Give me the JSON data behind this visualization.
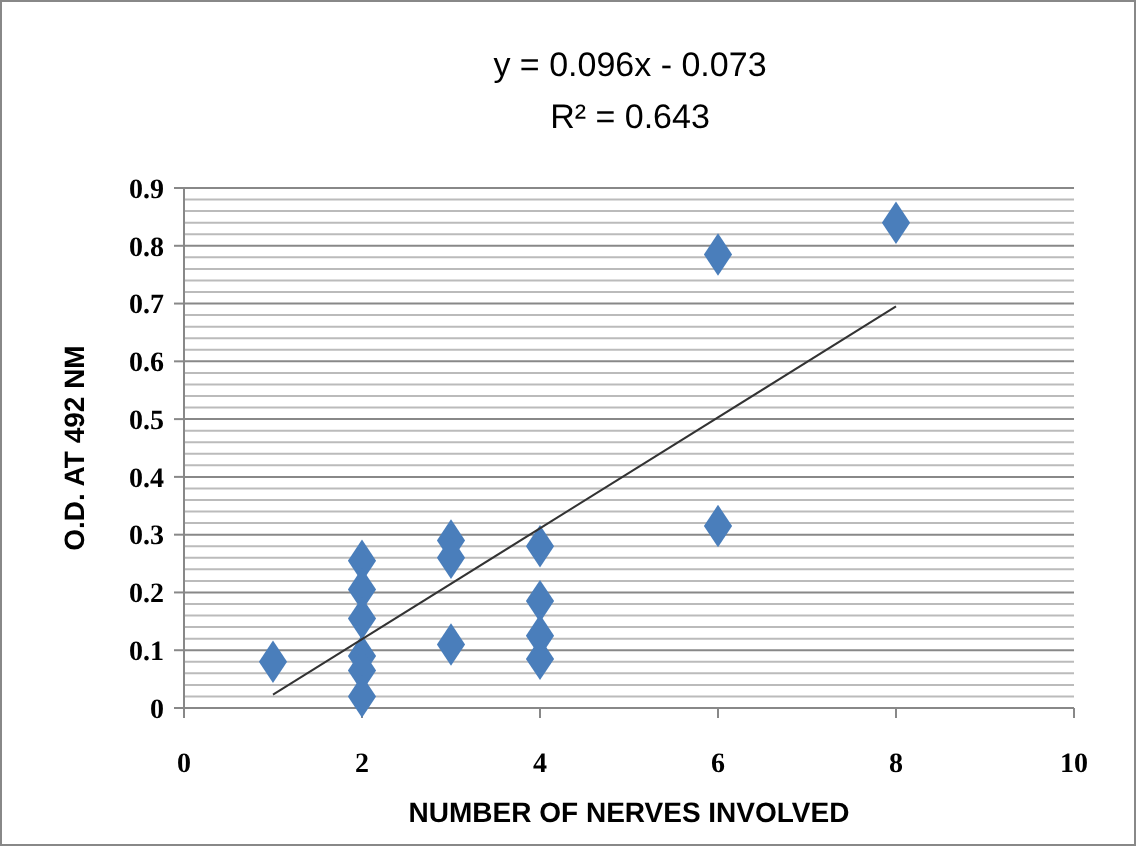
{
  "chart_data": {
    "type": "scatter",
    "xlabel": "NUMBER OF NERVES INVOLVED",
    "ylabel": "O.D. AT 492 NM",
    "annotations": [
      "y = 0.096x - 0.073",
      "R² = 0.643"
    ],
    "xlim": [
      0,
      10
    ],
    "xticks": [
      0,
      2,
      4,
      6,
      8,
      10
    ],
    "ylim": [
      0,
      0.9
    ],
    "yticks": [
      0,
      {
        "value": 0.02,
        "label": null
      },
      {
        "value": 0.04,
        "label": null
      },
      {
        "value": 0.06,
        "label": null
      },
      {
        "value": 0.08,
        "label": null
      },
      0.1,
      {
        "value": 0.12,
        "label": null
      },
      {
        "value": 0.14,
        "label": null
      },
      {
        "value": 0.16,
        "label": null
      },
      {
        "value": 0.18,
        "label": null
      },
      0.2,
      {
        "value": 0.22,
        "label": null
      },
      {
        "value": 0.24,
        "label": null
      },
      {
        "value": 0.26,
        "label": null
      },
      {
        "value": 0.28,
        "label": null
      },
      0.3,
      {
        "value": 0.32,
        "label": null
      },
      {
        "value": 0.34,
        "label": null
      },
      {
        "value": 0.36,
        "label": null
      },
      {
        "value": 0.38,
        "label": null
      },
      0.4,
      {
        "value": 0.42,
        "label": null
      },
      {
        "value": 0.44,
        "label": null
      },
      {
        "value": 0.46,
        "label": null
      },
      {
        "value": 0.48,
        "label": null
      },
      0.5,
      {
        "value": 0.52,
        "label": null
      },
      {
        "value": 0.54,
        "label": null
      },
      {
        "value": 0.56,
        "label": null
      },
      {
        "value": 0.58,
        "label": null
      },
      0.6,
      {
        "value": 0.62,
        "label": null
      },
      {
        "value": 0.64,
        "label": null
      },
      {
        "value": 0.66,
        "label": null
      },
      {
        "value": 0.68,
        "label": null
      },
      0.7,
      {
        "value": 0.72,
        "label": null
      },
      {
        "value": 0.74,
        "label": null
      },
      {
        "value": 0.76,
        "label": null
      },
      {
        "value": 0.78,
        "label": null
      },
      0.8,
      {
        "value": 0.82,
        "label": null
      },
      {
        "value": 0.84,
        "label": null
      },
      {
        "value": 0.86,
        "label": null
      },
      {
        "value": 0.88,
        "label": null
      },
      0.9
    ],
    "grid": "y",
    "series": [
      {
        "color": "#4a7ebb",
        "marker": "diamond",
        "x": [
          1,
          2,
          2,
          2,
          2,
          2,
          2,
          3,
          3,
          3,
          4,
          4,
          4,
          4,
          6,
          6,
          8
        ],
        "values": [
          0.08,
          0.255,
          0.205,
          0.155,
          0.09,
          0.065,
          0.02,
          0.29,
          0.26,
          0.11,
          0.28,
          0.185,
          0.125,
          0.085,
          0.785,
          0.315,
          0.84
        ]
      },
      {
        "type": "line",
        "color": "#333333",
        "x": [
          1,
          8
        ],
        "values": [
          0.023,
          0.695
        ],
        "marker": "none",
        "line_style": "solid"
      }
    ]
  }
}
